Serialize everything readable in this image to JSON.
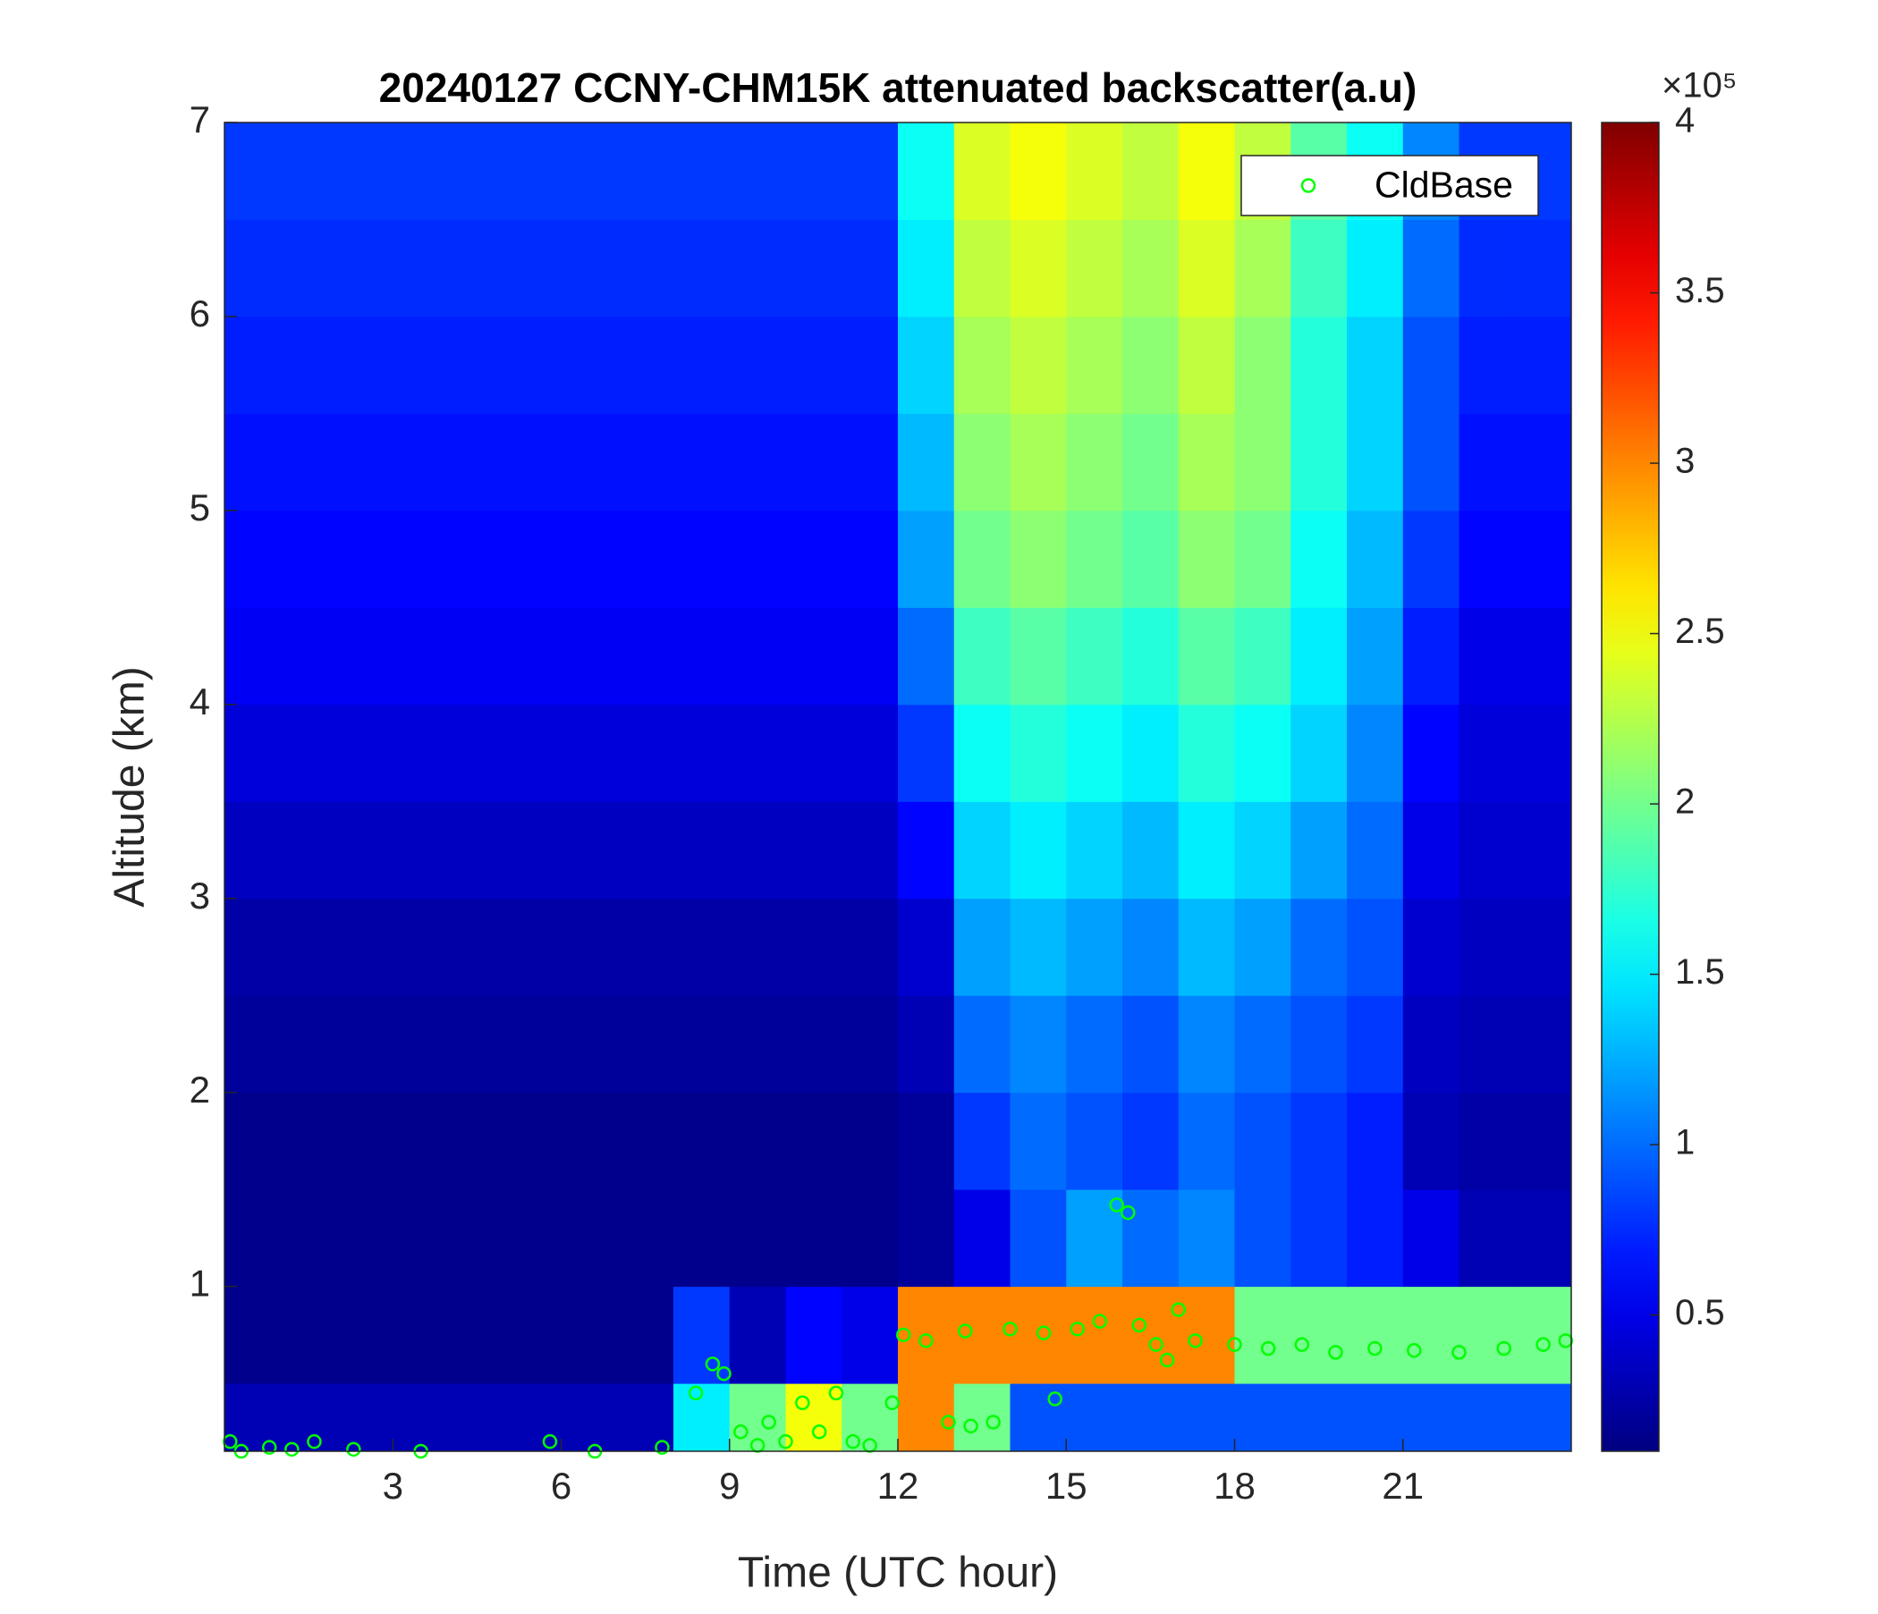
{
  "chart_data": {
    "type": "heatmap",
    "title": "20240127 CCNY-CHM15K attenuated backscatter(a.u)",
    "x_label": "Time (UTC hour)",
    "y_label": "Altitude (km)",
    "x_edges": [
      0,
      1,
      2,
      3,
      4,
      5,
      6,
      7,
      8,
      9,
      10,
      11,
      12,
      13,
      14,
      15,
      16,
      17,
      18,
      19,
      20,
      21,
      22,
      23,
      24
    ],
    "y_edges": [
      0.15,
      0.5,
      1,
      1.5,
      2,
      2.5,
      3,
      3.5,
      4,
      4.5,
      5,
      5.5,
      6,
      6.5,
      7
    ],
    "values": [
      [
        0.3,
        0.3,
        0.3,
        0.3,
        0.3,
        0.3,
        0.3,
        0.3,
        1.5,
        2.0,
        2.5,
        2.0,
        3.0,
        2.0,
        0.9,
        0.9,
        0.9,
        0.9,
        0.9,
        0.9,
        0.9,
        0.9,
        0.9,
        0.9
      ],
      [
        0.15,
        0.15,
        0.15,
        0.15,
        0.15,
        0.15,
        0.15,
        0.15,
        0.8,
        0.3,
        0.6,
        0.5,
        3.0,
        3.0,
        3.0,
        3.0,
        3.0,
        3.0,
        2.0,
        2.0,
        2.0,
        2.0,
        2.0,
        2.0
      ],
      [
        0.15,
        0.15,
        0.15,
        0.15,
        0.15,
        0.15,
        0.15,
        0.15,
        0.15,
        0.15,
        0.15,
        0.15,
        0.2,
        0.5,
        0.9,
        1.2,
        1.0,
        1.1,
        0.9,
        0.8,
        0.7,
        0.5,
        0.3,
        0.3
      ],
      [
        0.15,
        0.15,
        0.15,
        0.15,
        0.15,
        0.15,
        0.15,
        0.15,
        0.15,
        0.15,
        0.15,
        0.15,
        0.2,
        0.8,
        1.0,
        0.9,
        0.8,
        1.0,
        0.9,
        0.8,
        0.7,
        0.3,
        0.25,
        0.25
      ],
      [
        0.2,
        0.2,
        0.2,
        0.2,
        0.2,
        0.2,
        0.2,
        0.2,
        0.2,
        0.2,
        0.2,
        0.2,
        0.3,
        1.0,
        1.1,
        1.0,
        0.9,
        1.1,
        1.0,
        0.9,
        0.8,
        0.35,
        0.3,
        0.3
      ],
      [
        0.25,
        0.25,
        0.25,
        0.25,
        0.25,
        0.25,
        0.25,
        0.25,
        0.25,
        0.25,
        0.25,
        0.25,
        0.4,
        1.2,
        1.3,
        1.2,
        1.1,
        1.3,
        1.2,
        1.0,
        0.9,
        0.4,
        0.35,
        0.35
      ],
      [
        0.35,
        0.35,
        0.35,
        0.35,
        0.35,
        0.35,
        0.35,
        0.35,
        0.35,
        0.35,
        0.35,
        0.35,
        0.6,
        1.4,
        1.5,
        1.4,
        1.3,
        1.5,
        1.4,
        1.2,
        1.0,
        0.5,
        0.4,
        0.4
      ],
      [
        0.45,
        0.45,
        0.45,
        0.45,
        0.45,
        0.45,
        0.45,
        0.45,
        0.45,
        0.45,
        0.45,
        0.45,
        0.8,
        1.6,
        1.7,
        1.6,
        1.5,
        1.7,
        1.6,
        1.4,
        1.1,
        0.6,
        0.45,
        0.45
      ],
      [
        0.55,
        0.55,
        0.55,
        0.55,
        0.55,
        0.55,
        0.55,
        0.55,
        0.55,
        0.55,
        0.55,
        0.55,
        1.0,
        1.8,
        1.9,
        1.8,
        1.7,
        1.9,
        1.8,
        1.5,
        1.2,
        0.7,
        0.5,
        0.5
      ],
      [
        0.6,
        0.6,
        0.6,
        0.6,
        0.6,
        0.6,
        0.6,
        0.6,
        0.6,
        0.6,
        0.6,
        0.6,
        1.2,
        2.0,
        2.1,
        2.0,
        1.9,
        2.1,
        2.0,
        1.6,
        1.3,
        0.8,
        0.6,
        0.6
      ],
      [
        0.65,
        0.65,
        0.65,
        0.65,
        0.65,
        0.65,
        0.65,
        0.65,
        0.65,
        0.65,
        0.65,
        0.65,
        1.3,
        2.1,
        2.2,
        2.1,
        2.0,
        2.2,
        2.1,
        1.7,
        1.4,
        0.9,
        0.65,
        0.65
      ],
      [
        0.7,
        0.7,
        0.7,
        0.7,
        0.7,
        0.7,
        0.7,
        0.7,
        0.7,
        0.7,
        0.7,
        0.7,
        1.4,
        2.2,
        2.3,
        2.2,
        2.1,
        2.3,
        2.1,
        1.7,
        1.4,
        0.9,
        0.7,
        0.7
      ],
      [
        0.75,
        0.75,
        0.75,
        0.75,
        0.75,
        0.75,
        0.75,
        0.75,
        0.75,
        0.75,
        0.75,
        0.75,
        1.5,
        2.3,
        2.4,
        2.3,
        2.2,
        2.4,
        2.2,
        1.8,
        1.5,
        1.0,
        0.75,
        0.75
      ],
      [
        0.8,
        0.8,
        0.8,
        0.8,
        0.8,
        0.8,
        0.8,
        0.8,
        0.8,
        0.8,
        0.8,
        0.8,
        1.6,
        2.4,
        2.5,
        2.4,
        2.3,
        2.5,
        2.3,
        1.9,
        1.6,
        1.1,
        0.8,
        0.8
      ]
    ],
    "colormap": "jet",
    "clim": [
      0.1,
      4
    ],
    "colorbar_ticks": [
      0.5,
      1,
      1.5,
      2,
      2.5,
      3,
      3.5,
      4
    ],
    "colorbar_scale": "×10⁵",
    "xlim": [
      0,
      24
    ],
    "xticks": [
      3,
      6,
      9,
      12,
      15,
      18,
      21
    ],
    "ylim": [
      0.15,
      7
    ],
    "yticks": [
      1,
      2,
      3,
      4,
      5,
      6,
      7
    ],
    "legend_loc": "upper right",
    "series": [
      {
        "name": "CldBase",
        "type": "scatter",
        "color": "#00ff00",
        "x": [
          0.1,
          0.3,
          0.8,
          1.2,
          1.6,
          2.3,
          3.5,
          5.8,
          6.6,
          7.8,
          8.4,
          8.7,
          8.9,
          9.2,
          9.5,
          9.7,
          10.0,
          10.3,
          10.6,
          10.9,
          11.2,
          11.5,
          11.9,
          12.1,
          12.5,
          12.9,
          13.2,
          13.3,
          13.7,
          14.0,
          14.6,
          14.8,
          15.2,
          15.6,
          15.9,
          16.1,
          16.3,
          16.6,
          16.8,
          17.0,
          17.3,
          18.0,
          18.6,
          19.2,
          19.8,
          20.5,
          21.2,
          22.0,
          22.8,
          23.5,
          23.9
        ],
        "y": [
          0.2,
          0.15,
          0.17,
          0.16,
          0.2,
          0.16,
          0.15,
          0.2,
          0.15,
          0.17,
          0.45,
          0.6,
          0.55,
          0.25,
          0.18,
          0.3,
          0.2,
          0.4,
          0.25,
          0.45,
          0.2,
          0.18,
          0.4,
          0.75,
          0.72,
          0.3,
          0.77,
          0.28,
          0.3,
          0.78,
          0.76,
          0.42,
          0.78,
          0.82,
          1.42,
          1.38,
          0.8,
          0.7,
          0.62,
          0.88,
          0.72,
          0.7,
          0.68,
          0.7,
          0.66,
          0.68,
          0.67,
          0.66,
          0.68,
          0.7,
          0.72
        ]
      }
    ]
  }
}
